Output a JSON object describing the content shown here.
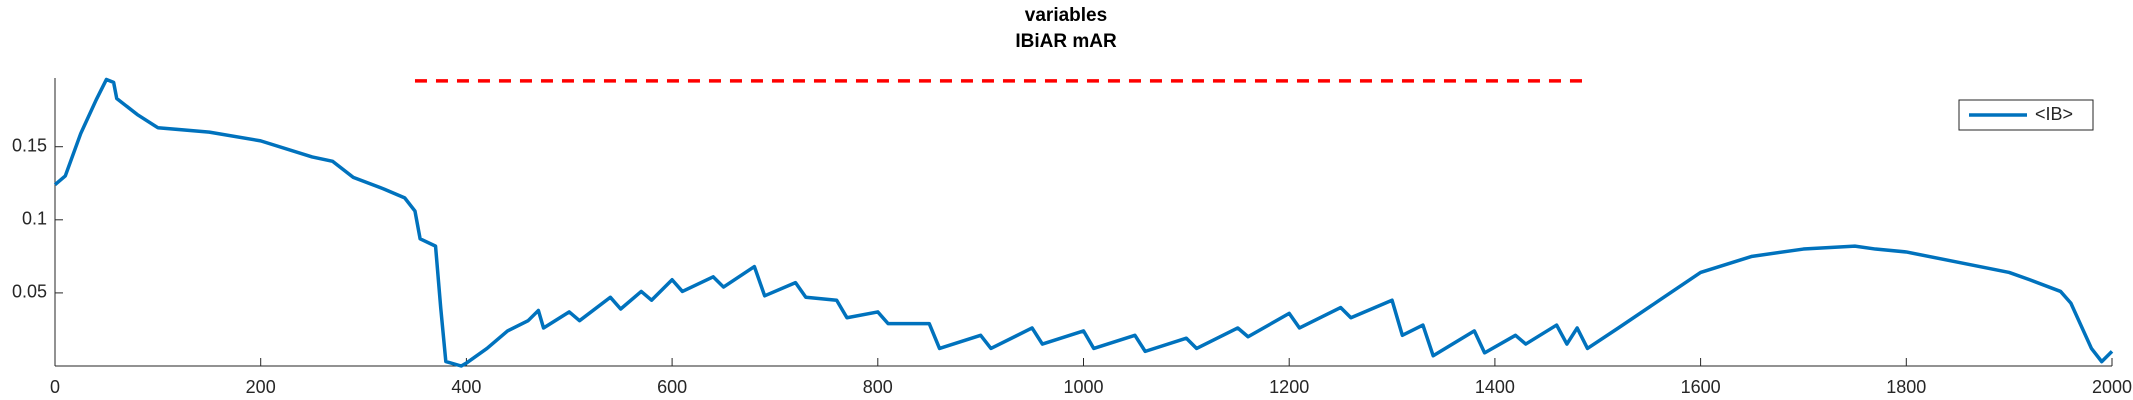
{
  "chart_data": {
    "type": "line",
    "title": "variables",
    "subtitle": "IBiAR mAR",
    "x": [
      0,
      10,
      25,
      40,
      50,
      57,
      60,
      80,
      100,
      150,
      200,
      250,
      270,
      290,
      320,
      340,
      350,
      355,
      370,
      375,
      380,
      395,
      400,
      420,
      440,
      460,
      470,
      475,
      500,
      510,
      540,
      550,
      570,
      580,
      600,
      610,
      640,
      650,
      680,
      690,
      720,
      730,
      760,
      770,
      800,
      810,
      850,
      860,
      900,
      910,
      950,
      960,
      1000,
      1010,
      1050,
      1060,
      1100,
      1110,
      1150,
      1160,
      1200,
      1210,
      1250,
      1260,
      1300,
      1310,
      1330,
      1340,
      1380,
      1390,
      1420,
      1430,
      1460,
      1470,
      1480,
      1490,
      1520,
      1560,
      1600,
      1650,
      1700,
      1750,
      1770,
      1800,
      1850,
      1900,
      1920,
      1950,
      1960,
      1980,
      1990,
      2000
    ],
    "series": [
      {
        "name": "<IB>",
        "color": "#0072bd",
        "values": [
          0.124,
          0.13,
          0.159,
          0.182,
          0.196,
          0.194,
          0.183,
          0.172,
          0.163,
          0.16,
          0.154,
          0.143,
          0.14,
          0.129,
          0.121,
          0.115,
          0.106,
          0.087,
          0.082,
          0.04,
          0.003,
          0,
          0.002,
          0.012,
          0.024,
          0.031,
          0.038,
          0.026,
          0.037,
          0.031,
          0.047,
          0.039,
          0.051,
          0.045,
          0.059,
          0.051,
          0.061,
          0.054,
          0.068,
          0.048,
          0.057,
          0.047,
          0.045,
          0.033,
          0.037,
          0.029,
          0.029,
          0.012,
          0.021,
          0.012,
          0.026,
          0.015,
          0.024,
          0.012,
          0.021,
          0.01,
          0.019,
          0.012,
          0.026,
          0.02,
          0.036,
          0.026,
          0.04,
          0.033,
          0.045,
          0.021,
          0.028,
          0.007,
          0.024,
          0.009,
          0.021,
          0.015,
          0.028,
          0.015,
          0.026,
          0.012,
          0.026,
          0.045,
          0.064,
          0.075,
          0.08,
          0.082,
          0.08,
          0.078,
          0.071,
          0.064,
          0.059,
          0.051,
          0.043,
          0.012,
          0.003,
          0.01
        ]
      }
    ],
    "hline": {
      "y": 0.195,
      "xmin": 350,
      "xmax": 1490,
      "color": "#ff0000",
      "style": "dashed"
    },
    "xlim": [
      0,
      2000
    ],
    "xticks": [
      0,
      200,
      400,
      600,
      800,
      1000,
      1200,
      1400,
      1600,
      1800,
      2000
    ],
    "ylim": [
      0,
      0.197
    ],
    "yticks": [
      0.05,
      0.1,
      0.15
    ],
    "grid": false,
    "legend": "northeast"
  }
}
